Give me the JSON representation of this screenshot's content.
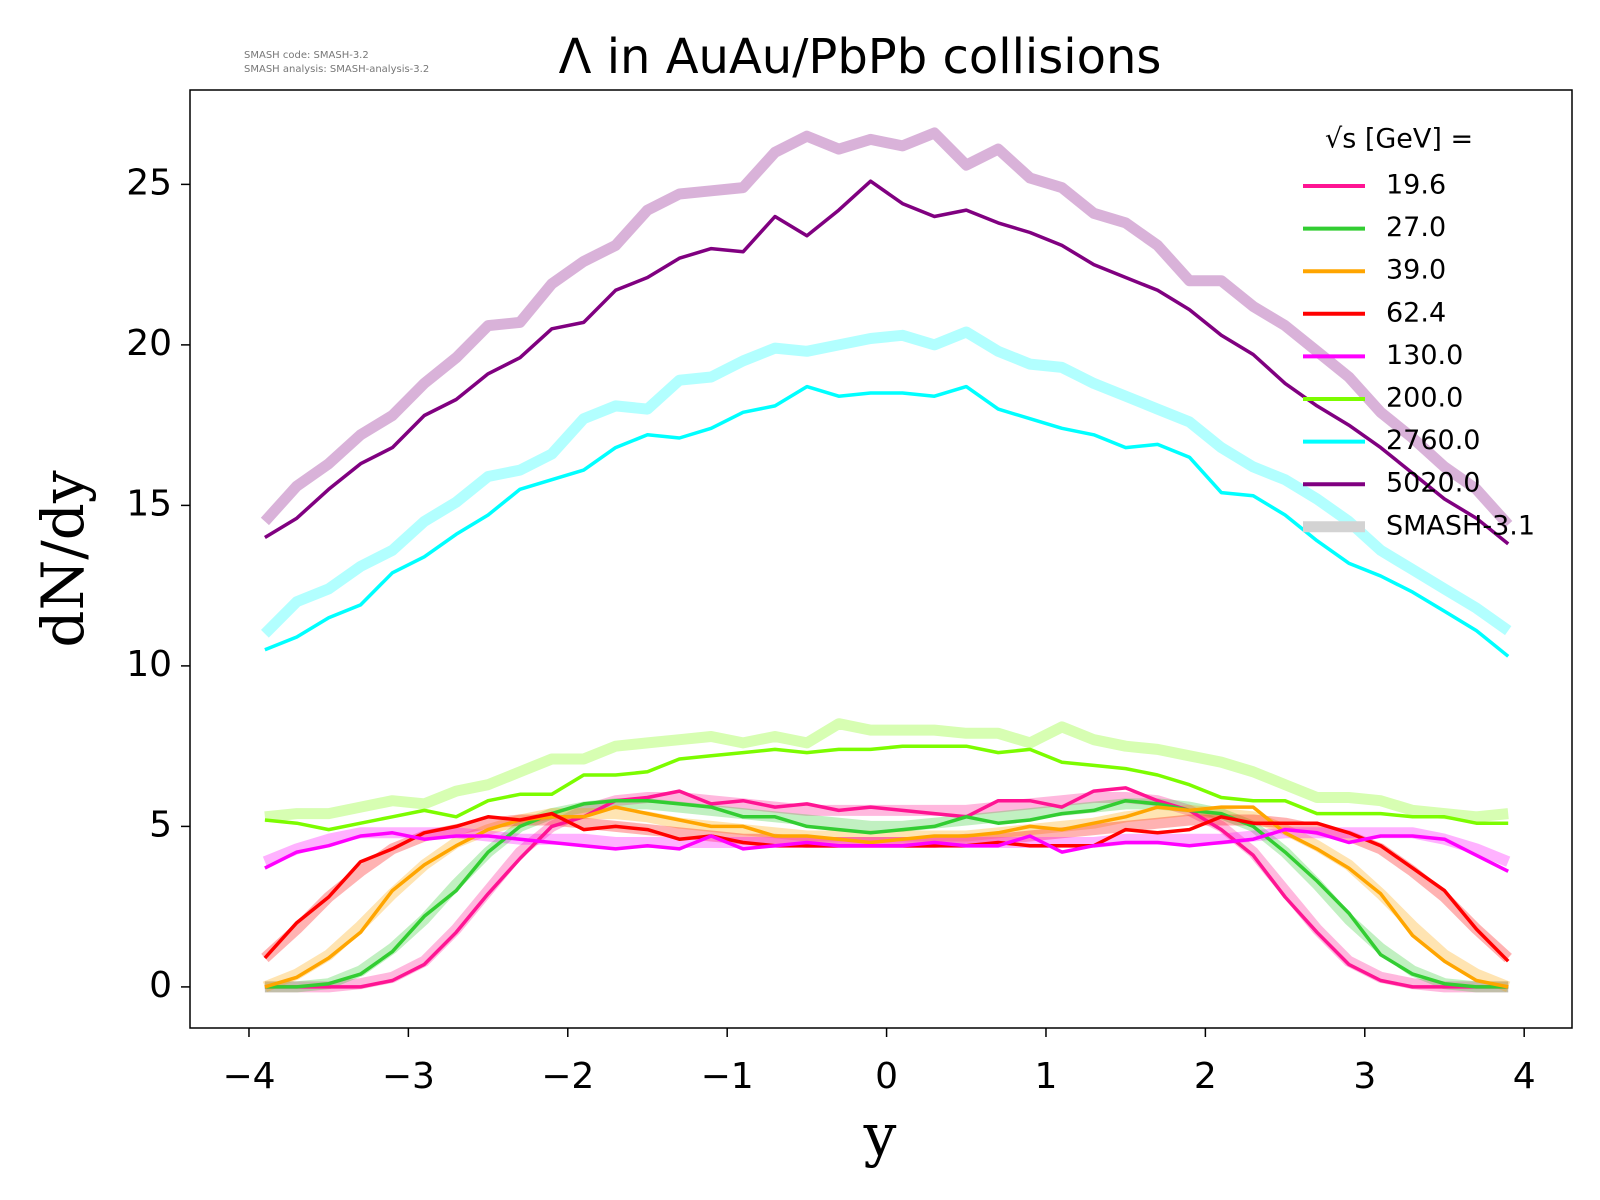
{
  "chart_data": {
    "type": "line",
    "title": "Λ in AuAu/PbPb collisions",
    "notes": [
      "SMASH code:      SMASH-3.2",
      "SMASH analysis: SMASH-analysis-3.2"
    ],
    "xlabel": "y",
    "ylabel": "dN/dy",
    "legend_title": "√s  [GeV] =",
    "legend": "upper right",
    "xlim": [
      -4.37,
      4.3
    ],
    "ylim": [
      -1.28,
      27.94
    ],
    "xticks": [
      {
        "value": -4,
        "label": "−4"
      },
      {
        "value": -3,
        "label": "−3"
      },
      {
        "value": -2,
        "label": "−2"
      },
      {
        "value": -1,
        "label": "−1"
      },
      0,
      1,
      2,
      3,
      4
    ],
    "yticks": [
      0,
      5,
      10,
      15,
      20,
      25
    ],
    "x": [
      -3.9,
      -3.7,
      -3.5,
      -3.3,
      -3.1,
      -2.9,
      -2.7,
      -2.5,
      -2.3,
      -2.1,
      -1.9,
      -1.7,
      -1.5,
      -1.3,
      -1.1,
      -0.9,
      -0.7,
      -0.5,
      -0.3,
      -0.1,
      0.1,
      0.3,
      0.5,
      0.7,
      0.9,
      1.1,
      1.3,
      1.5,
      1.7,
      1.9,
      2.1,
      2.3,
      2.5,
      2.7,
      2.9,
      3.1,
      3.3,
      3.5,
      3.7,
      3.9
    ],
    "series": [
      {
        "name": "19.6",
        "color": "#ff1493",
        "values": [
          0.0,
          0.0,
          0.0,
          0.0,
          0.2,
          0.7,
          1.7,
          2.9,
          4.0,
          5.0,
          5.3,
          5.8,
          5.9,
          6.1,
          5.7,
          5.8,
          5.6,
          5.7,
          5.5,
          5.6,
          5.5,
          5.4,
          5.3,
          5.8,
          5.8,
          5.6,
          6.1,
          6.2,
          5.8,
          5.5,
          4.9,
          4.1,
          2.8,
          1.7,
          0.7,
          0.2,
          0.0,
          0.0,
          0.0,
          0.0
        ]
      },
      {
        "name": "27.0",
        "color": "#32cd32",
        "values": [
          0.0,
          0.0,
          0.1,
          0.4,
          1.1,
          2.2,
          3.0,
          4.2,
          5.0,
          5.4,
          5.7,
          5.8,
          5.8,
          5.7,
          5.6,
          5.3,
          5.3,
          5.0,
          4.9,
          4.8,
          4.9,
          5.0,
          5.3,
          5.1,
          5.2,
          5.4,
          5.5,
          5.8,
          5.7,
          5.5,
          5.4,
          5.0,
          4.2,
          3.3,
          2.3,
          1.0,
          0.4,
          0.1,
          0.0,
          0.0
        ]
      },
      {
        "name": "39.0",
        "color": "#ffa500",
        "values": [
          0.0,
          0.3,
          0.9,
          1.7,
          3.0,
          3.8,
          4.4,
          4.9,
          5.2,
          5.3,
          5.3,
          5.6,
          5.4,
          5.2,
          5.0,
          5.0,
          4.7,
          4.7,
          4.6,
          4.5,
          4.6,
          4.7,
          4.7,
          4.8,
          5.0,
          4.9,
          5.1,
          5.3,
          5.6,
          5.5,
          5.6,
          5.6,
          4.8,
          4.3,
          3.7,
          2.9,
          1.6,
          0.8,
          0.2,
          0.0
        ]
      },
      {
        "name": "62.4",
        "color": "#ff0000",
        "values": [
          0.9,
          2.0,
          2.8,
          3.9,
          4.3,
          4.8,
          5.0,
          5.3,
          5.2,
          5.4,
          4.9,
          5.0,
          4.9,
          4.6,
          4.7,
          4.5,
          4.4,
          4.4,
          4.4,
          4.4,
          4.4,
          4.4,
          4.4,
          4.5,
          4.4,
          4.4,
          4.4,
          4.9,
          4.8,
          4.9,
          5.3,
          5.1,
          5.1,
          5.1,
          4.8,
          4.4,
          3.7,
          3.0,
          1.8,
          0.8
        ]
      },
      {
        "name": "130.0",
        "color": "#ff00ff",
        "values": [
          3.7,
          4.2,
          4.4,
          4.7,
          4.8,
          4.6,
          4.7,
          4.7,
          4.6,
          4.5,
          4.4,
          4.3,
          4.4,
          4.3,
          4.7,
          4.3,
          4.4,
          4.5,
          4.4,
          4.4,
          4.4,
          4.5,
          4.4,
          4.4,
          4.7,
          4.2,
          4.4,
          4.5,
          4.5,
          4.4,
          4.5,
          4.6,
          4.9,
          4.8,
          4.5,
          4.7,
          4.7,
          4.6,
          4.1,
          3.6
        ]
      },
      {
        "name": "200.0",
        "color": "#7cfc00",
        "values": [
          5.2,
          5.1,
          4.9,
          5.1,
          5.3,
          5.5,
          5.3,
          5.8,
          6.0,
          6.0,
          6.6,
          6.6,
          6.7,
          7.1,
          7.2,
          7.3,
          7.4,
          7.3,
          7.4,
          7.4,
          7.5,
          7.5,
          7.5,
          7.3,
          7.4,
          7.0,
          6.9,
          6.8,
          6.6,
          6.3,
          5.9,
          5.8,
          5.8,
          5.4,
          5.4,
          5.4,
          5.3,
          5.3,
          5.1,
          5.1
        ]
      },
      {
        "name": "2760.0",
        "color": "#00ffff",
        "values": [
          10.5,
          10.9,
          11.5,
          11.9,
          12.9,
          13.4,
          14.1,
          14.7,
          15.5,
          15.8,
          16.1,
          16.8,
          17.2,
          17.1,
          17.4,
          17.9,
          18.1,
          18.7,
          18.4,
          18.5,
          18.5,
          18.4,
          18.7,
          18.0,
          17.7,
          17.4,
          17.2,
          16.8,
          16.9,
          16.5,
          15.4,
          15.3,
          14.7,
          13.9,
          13.2,
          12.8,
          12.3,
          11.7,
          11.1,
          10.3
        ]
      },
      {
        "name": "5020.0",
        "color": "#800080",
        "values": [
          14.0,
          14.6,
          15.5,
          16.3,
          16.8,
          17.8,
          18.3,
          19.1,
          19.6,
          20.5,
          20.7,
          21.7,
          22.1,
          22.7,
          23.0,
          22.9,
          24.0,
          23.4,
          24.2,
          25.1,
          24.4,
          24.0,
          24.2,
          23.8,
          23.5,
          23.1,
          22.5,
          22.1,
          21.7,
          21.1,
          20.3,
          19.7,
          18.8,
          18.1,
          17.5,
          16.8,
          16.0,
          15.2,
          14.6,
          13.8
        ]
      }
    ],
    "reference": {
      "name": "SMASH-3.1",
      "color": "#d3d3d3",
      "opacity": 0.3,
      "series": [
        {
          "values": [
            0.0,
            0.0,
            0.0,
            0.1,
            0.3,
            0.8,
            1.8,
            3.0,
            4.2,
            5.0,
            5.5,
            5.8,
            5.9,
            5.9,
            5.8,
            5.7,
            5.6,
            5.5,
            5.5,
            5.5,
            5.5,
            5.5,
            5.5,
            5.6,
            5.7,
            5.8,
            5.9,
            5.9,
            5.8,
            5.5,
            5.0,
            4.2,
            3.0,
            1.8,
            0.8,
            0.3,
            0.1,
            0.0,
            0.0,
            0.0
          ]
        },
        {
          "values": [
            0.0,
            0.0,
            0.1,
            0.5,
            1.2,
            2.1,
            3.2,
            4.2,
            5.0,
            5.4,
            5.6,
            5.7,
            5.7,
            5.6,
            5.5,
            5.4,
            5.3,
            5.2,
            5.1,
            5.0,
            5.0,
            5.1,
            5.2,
            5.3,
            5.4,
            5.5,
            5.6,
            5.7,
            5.7,
            5.6,
            5.4,
            5.0,
            4.2,
            3.2,
            2.1,
            1.2,
            0.5,
            0.1,
            0.0,
            0.0
          ]
        },
        {
          "values": [
            0.0,
            0.4,
            1.0,
            1.9,
            2.9,
            3.8,
            4.5,
            4.9,
            5.2,
            5.4,
            5.4,
            5.4,
            5.3,
            5.1,
            5.0,
            4.9,
            4.8,
            4.7,
            4.7,
            4.7,
            4.7,
            4.7,
            4.7,
            4.8,
            4.9,
            5.0,
            5.1,
            5.3,
            5.4,
            5.5,
            5.4,
            5.3,
            4.9,
            4.4,
            3.8,
            2.9,
            1.9,
            1.0,
            0.4,
            0.0
          ]
        },
        {
          "values": [
            0.9,
            1.8,
            2.8,
            3.6,
            4.3,
            4.7,
            4.9,
            5.1,
            5.2,
            5.2,
            5.1,
            5.0,
            4.9,
            4.8,
            4.7,
            4.6,
            4.6,
            4.5,
            4.5,
            4.5,
            4.5,
            4.5,
            4.6,
            4.6,
            4.7,
            4.8,
            4.9,
            5.0,
            5.1,
            5.2,
            5.2,
            5.2,
            5.1,
            4.9,
            4.7,
            4.3,
            3.6,
            2.8,
            1.8,
            0.9
          ]
        },
        {
          "values": [
            3.9,
            4.3,
            4.6,
            4.8,
            4.8,
            4.8,
            4.8,
            4.7,
            4.6,
            4.6,
            4.6,
            4.5,
            4.5,
            4.5,
            4.5,
            4.5,
            4.5,
            4.5,
            4.5,
            4.5,
            4.5,
            4.5,
            4.5,
            4.5,
            4.5,
            4.5,
            4.5,
            4.6,
            4.6,
            4.6,
            4.6,
            4.7,
            4.8,
            4.8,
            4.8,
            4.8,
            4.8,
            4.6,
            4.3,
            3.9
          ]
        },
        {
          "values": [
            5.3,
            5.4,
            5.4,
            5.6,
            5.8,
            5.7,
            6.1,
            6.3,
            6.7,
            7.1,
            7.1,
            7.5,
            7.6,
            7.7,
            7.8,
            7.6,
            7.8,
            7.6,
            8.2,
            8.0,
            8.0,
            8.0,
            7.9,
            7.9,
            7.6,
            8.1,
            7.7,
            7.5,
            7.4,
            7.2,
            7.0,
            6.7,
            6.3,
            5.9,
            5.9,
            5.8,
            5.5,
            5.4,
            5.3,
            5.4
          ]
        },
        {
          "values": [
            11.0,
            12.0,
            12.4,
            13.1,
            13.6,
            14.5,
            15.1,
            15.9,
            16.1,
            16.6,
            17.7,
            18.1,
            18.0,
            18.9,
            19.0,
            19.5,
            19.9,
            19.8,
            20.0,
            20.2,
            20.3,
            20.0,
            20.4,
            19.8,
            19.4,
            19.3,
            18.8,
            18.4,
            18.0,
            17.6,
            16.8,
            16.2,
            15.8,
            15.2,
            14.5,
            13.6,
            13.0,
            12.4,
            11.8,
            11.1
          ]
        },
        {
          "values": [
            14.5,
            15.6,
            16.3,
            17.2,
            17.8,
            18.8,
            19.6,
            20.6,
            20.7,
            21.9,
            22.6,
            23.1,
            24.2,
            24.7,
            24.8,
            24.9,
            26.0,
            26.5,
            26.1,
            26.4,
            26.2,
            26.6,
            25.6,
            26.1,
            25.2,
            24.9,
            24.1,
            23.8,
            23.1,
            22.0,
            22.0,
            21.2,
            20.6,
            19.8,
            19.0,
            17.9,
            17.1,
            16.2,
            15.5,
            14.4
          ]
        }
      ]
    }
  }
}
